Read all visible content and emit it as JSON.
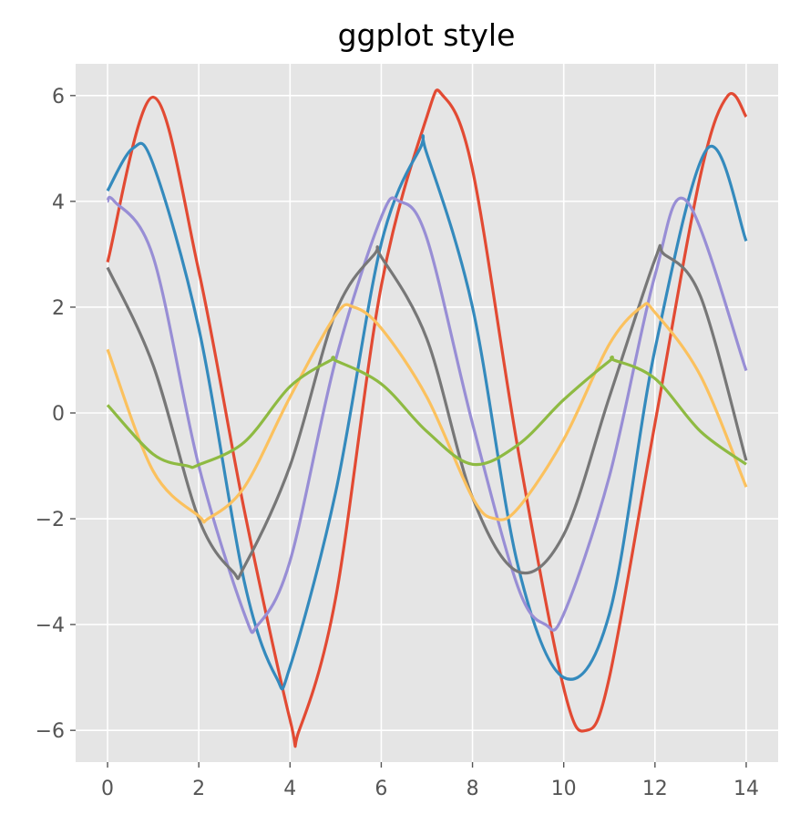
{
  "chart_data": {
    "type": "line",
    "title": "ggplot style",
    "xlabel": "",
    "ylabel": "",
    "xlim": [
      -0.7,
      14.7
    ],
    "ylim": [
      -6.6,
      6.6
    ],
    "xticks": [
      0,
      2,
      4,
      6,
      8,
      10,
      12,
      14
    ],
    "yticks": [
      -6,
      -4,
      -2,
      0,
      2,
      4,
      6
    ],
    "xtick_labels": [
      "0",
      "2",
      "4",
      "6",
      "8",
      "10",
      "12",
      "14"
    ],
    "ytick_labels": [
      "−6",
      "−4",
      "−2",
      "0",
      "2",
      "4",
      "6"
    ],
    "grid": true,
    "background": "#e5e5e5",
    "grid_color": "#ffffff",
    "series": [
      {
        "color": "#e24a33",
        "x": [
          0,
          1,
          2,
          3,
          4,
          4.2,
          5,
          6,
          7,
          7.35,
          8,
          9,
          10,
          10.5,
          11,
          12,
          13,
          13.6,
          14
        ],
        "y": [
          2.85,
          5.97,
          2.68,
          -1.85,
          -5.8,
          -6.0,
          -3.5,
          2.4,
          5.6,
          6.0,
          4.6,
          -0.7,
          -5.2,
          -6.0,
          -5.0,
          -0.2,
          4.5,
          6.0,
          5.6
        ]
      },
      {
        "color": "#348abd",
        "x": [
          0,
          0.55,
          1,
          2,
          3,
          3.7,
          4,
          5,
          6,
          6.85,
          7,
          8,
          9,
          10,
          11,
          12,
          13.15,
          14
        ],
        "y": [
          4.2,
          5.0,
          4.7,
          1.6,
          -3.2,
          -5.0,
          -4.8,
          -1.5,
          3.2,
          5.0,
          4.9,
          2.0,
          -2.9,
          -5.0,
          -3.8,
          1.2,
          5.0,
          3.25
        ]
      },
      {
        "color": "#988ed5",
        "x": [
          0,
          0.15,
          1,
          2,
          3,
          3.3,
          4,
          5,
          6,
          6.4,
          7,
          8,
          9,
          9.6,
          10,
          11,
          12,
          12.7,
          14
        ],
        "y": [
          4.0,
          4.0,
          2.95,
          -1.0,
          -3.8,
          -4.0,
          -2.8,
          1.0,
          3.7,
          4.0,
          3.3,
          -0.2,
          -3.3,
          -4.0,
          -3.8,
          -1.2,
          2.6,
          4.0,
          0.8
        ]
      },
      {
        "color": "#777777",
        "x": [
          0,
          1,
          2,
          2.75,
          3,
          4,
          5,
          5.85,
          6,
          7,
          8,
          9,
          10,
          11,
          12,
          12.2,
          13,
          14
        ],
        "y": [
          2.75,
          0.9,
          -2.0,
          -3.0,
          -2.9,
          -1.0,
          1.9,
          3.0,
          2.95,
          1.4,
          -1.6,
          -3.0,
          -2.3,
          0.3,
          2.9,
          3.0,
          2.2,
          -0.9
        ]
      },
      {
        "color": "#fbc15e",
        "x": [
          0,
          1,
          2,
          2.2,
          3,
          4,
          5,
          5.4,
          6,
          7,
          8,
          8.5,
          9,
          10,
          11,
          11.7,
          12,
          13,
          14
        ],
        "y": [
          1.2,
          -1.1,
          -1.95,
          -2.0,
          -1.4,
          0.3,
          1.85,
          2.0,
          1.6,
          0.3,
          -1.6,
          -2.0,
          -1.8,
          -0.5,
          1.3,
          2.0,
          1.9,
          0.7,
          -1.4
        ]
      },
      {
        "color": "#8eba42",
        "x": [
          0,
          1,
          1.75,
          2,
          3,
          4,
          4.9,
          5,
          6,
          7,
          8,
          9,
          10,
          11,
          11.1,
          12,
          13,
          14
        ],
        "y": [
          0.15,
          -0.78,
          -1.0,
          -0.98,
          -0.55,
          0.5,
          1.0,
          0.99,
          0.55,
          -0.35,
          -0.97,
          -0.6,
          0.25,
          0.98,
          1.0,
          0.65,
          -0.35,
          -0.97
        ]
      }
    ]
  }
}
